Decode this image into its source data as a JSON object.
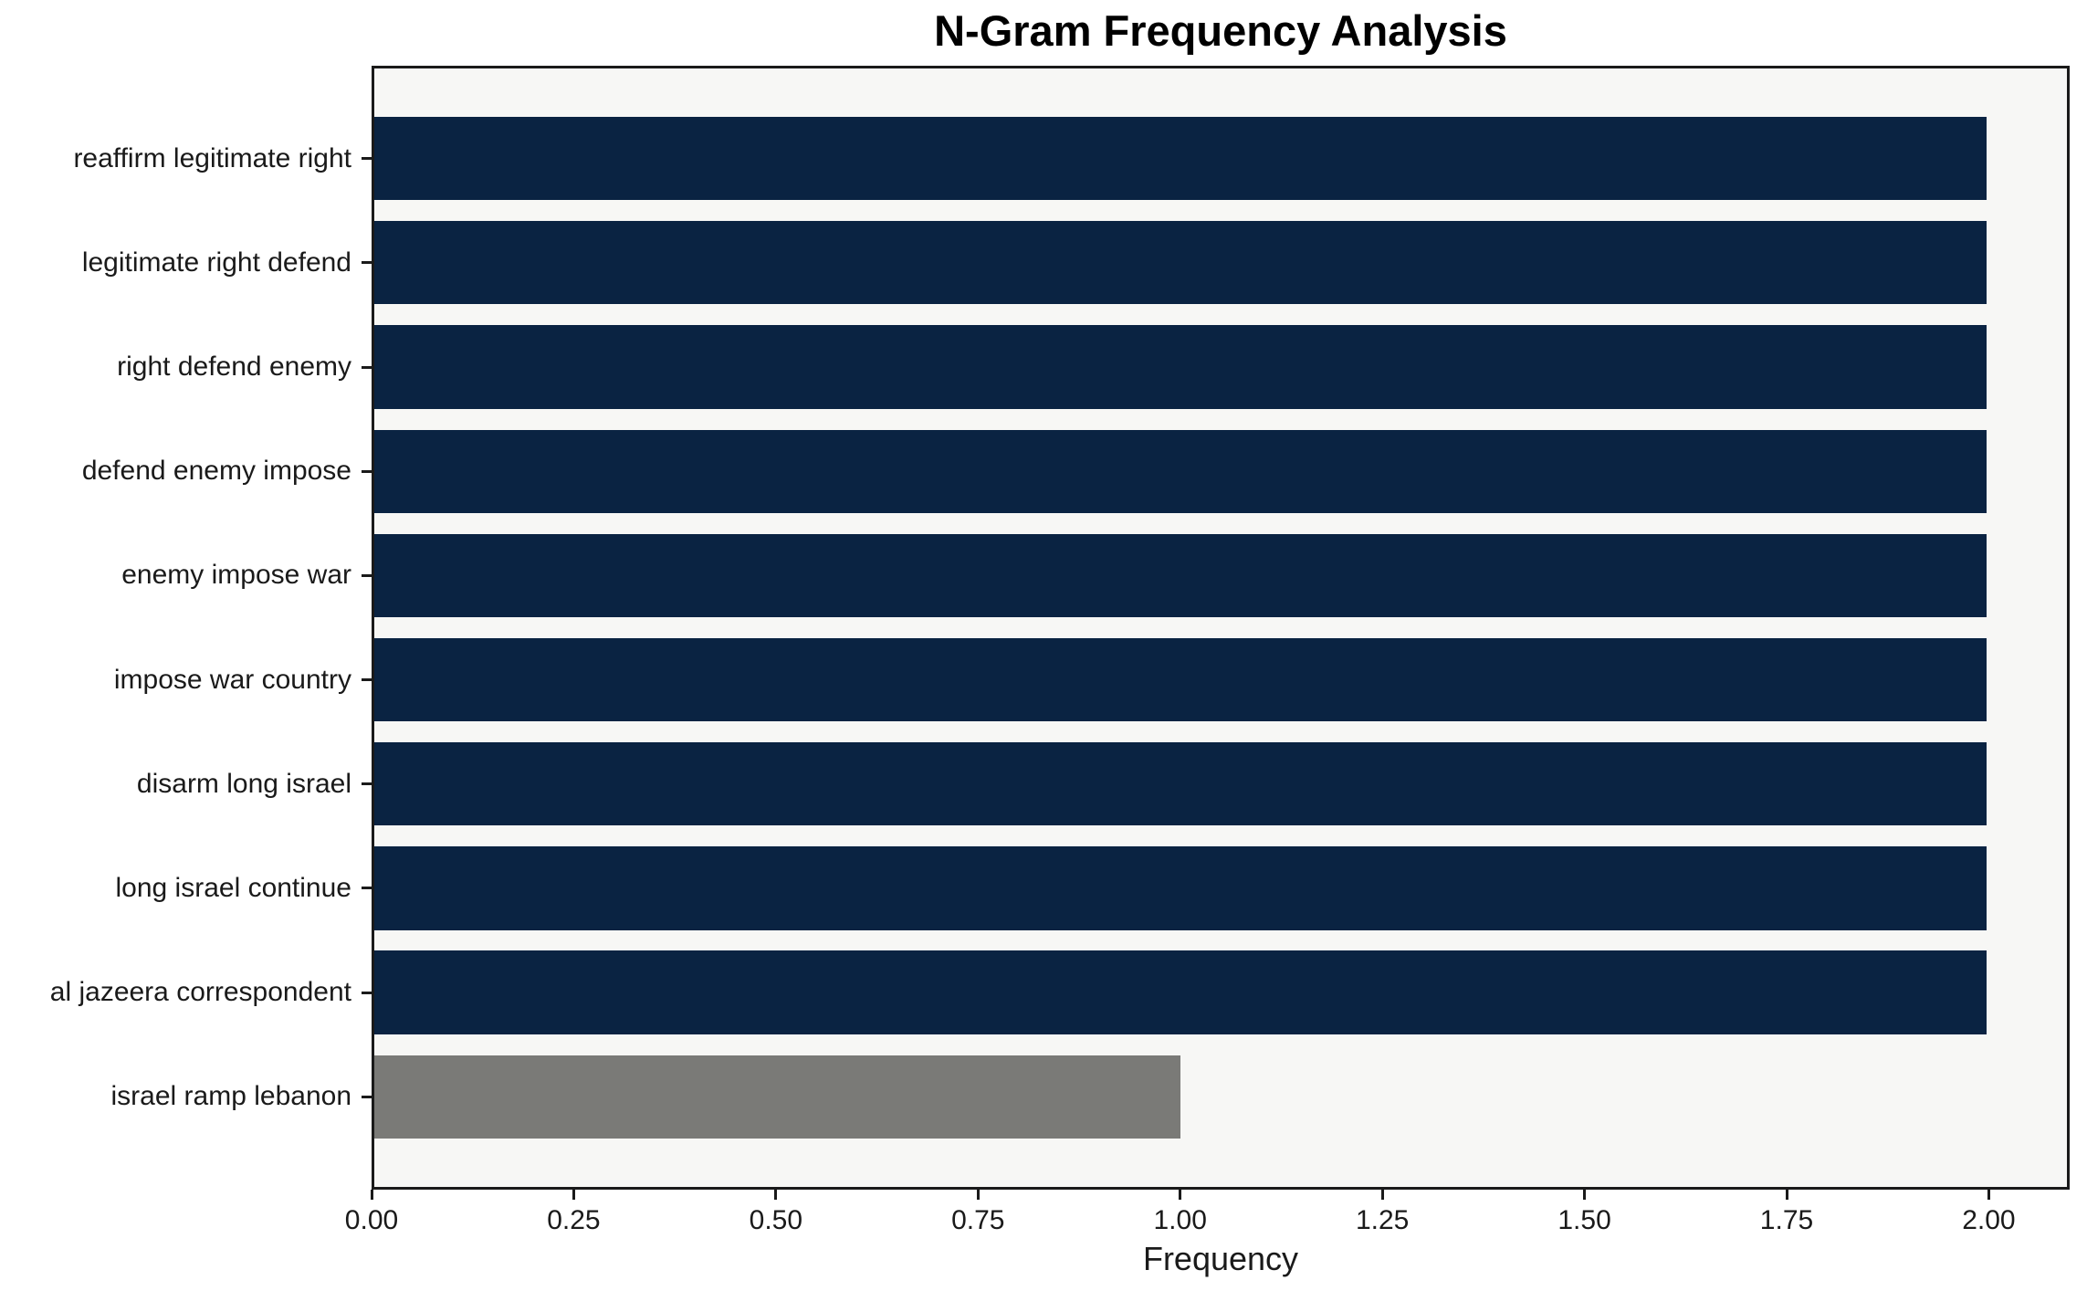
{
  "chart_data": {
    "type": "bar",
    "orientation": "horizontal",
    "title": "N-Gram Frequency Analysis",
    "xlabel": "Frequency",
    "ylabel": "",
    "categories": [
      "reaffirm legitimate right",
      "legitimate right defend",
      "right defend enemy",
      "defend enemy impose",
      "enemy impose war",
      "impose war country",
      "disarm long israel",
      "long israel continue",
      "al jazeera correspondent",
      "israel ramp lebanon"
    ],
    "values": [
      2,
      2,
      2,
      2,
      2,
      2,
      2,
      2,
      2,
      1
    ],
    "bar_colors": [
      "#0a2342",
      "#0a2342",
      "#0a2342",
      "#0a2342",
      "#0a2342",
      "#0a2342",
      "#0a2342",
      "#0a2342",
      "#0a2342",
      "#7a7a77"
    ],
    "xlim": [
      0,
      2.1
    ],
    "xtick_labels": [
      "0.00",
      "0.25",
      "0.50",
      "0.75",
      "1.00",
      "1.25",
      "1.50",
      "1.75",
      "2.00"
    ],
    "xtick_values": [
      0,
      0.25,
      0.5,
      0.75,
      1.0,
      1.25,
      1.5,
      1.75,
      2.0
    ],
    "bar_height_fraction": 0.8,
    "grid": false,
    "legend": null,
    "plot_background": "#f7f7f5",
    "figure_background": "#ffffff",
    "spine_color": "#1a1a1a",
    "text_color": "#1a1a1a"
  }
}
